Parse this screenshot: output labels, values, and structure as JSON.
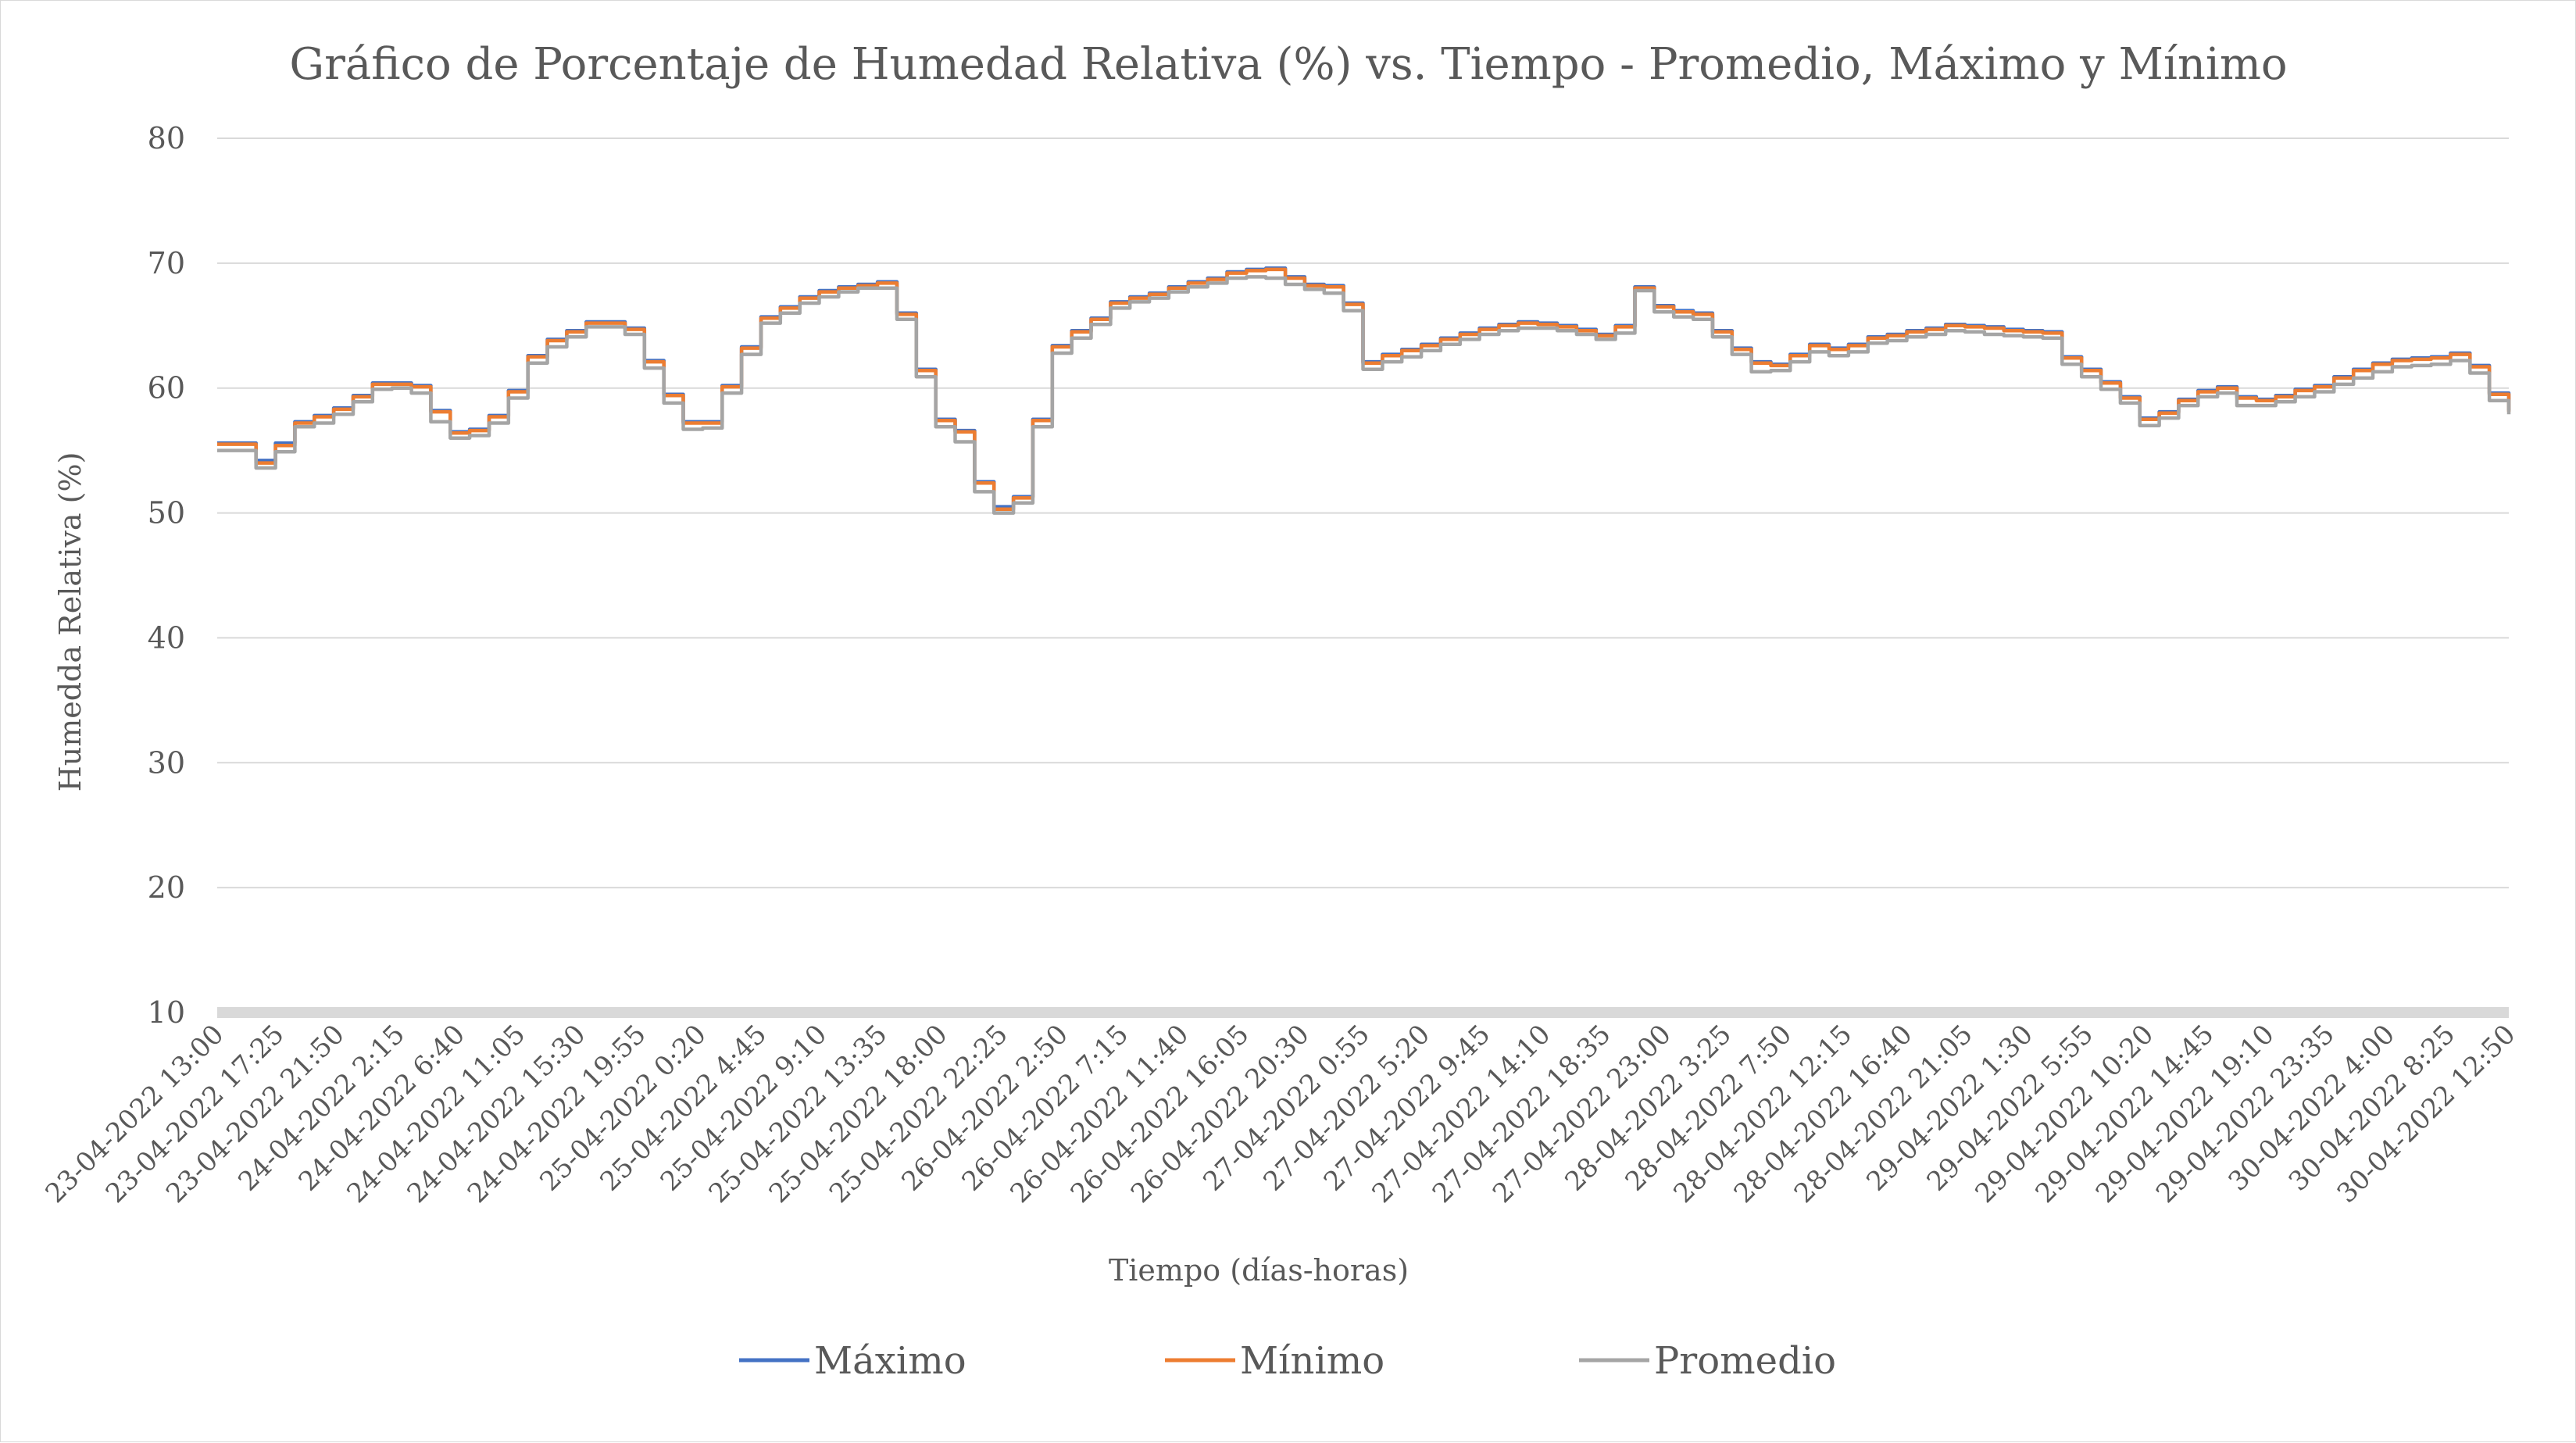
{
  "chart_data": {
    "type": "line",
    "title": "Gráfico de Porcentaje de Humedad Relativa (%) vs. Tiempo - Promedio, Máximo y Mínimo",
    "xlabel": "Tiempo (días-horas)",
    "ylabel": "Humedda Relativa (%)",
    "ylim": [
      10,
      80
    ],
    "yticks": [
      10,
      20,
      30,
      40,
      50,
      60,
      70,
      80
    ],
    "grid": true,
    "legend_position": "bottom",
    "x_tick_labels": [
      "23-04-2022 13:00",
      "23-04-2022 17:25",
      "23-04-2022 21:50",
      "24-04-2022 2:15",
      "24-04-2022 6:40",
      "24-04-2022 11:05",
      "24-04-2022 15:30",
      "24-04-2022 19:55",
      "25-04-2022 0:20",
      "25-04-2022 4:45",
      "25-04-2022 9:10",
      "25-04-2022 13:35",
      "25-04-2022 18:00",
      "25-04-2022 22:25",
      "26-04-2022 2:50",
      "26-04-2022 7:15",
      "26-04-2022 11:40",
      "26-04-2022 16:05",
      "26-04-2022 20:30",
      "27-04-2022 0:55",
      "27-04-2022 5:20",
      "27-04-2022 9:45",
      "27-04-2022 14:10",
      "27-04-2022 18:35",
      "27-04-2022 23:00",
      "28-04-2022 3:25",
      "28-04-2022 7:50",
      "28-04-2022 12:15",
      "28-04-2022 16:40",
      "28-04-2022 21:05",
      "29-04-2022 1:30",
      "29-04-2022 5:55",
      "29-04-2022 10:20",
      "29-04-2022 14:45",
      "29-04-2022 19:10",
      "29-04-2022 23:35",
      "30-04-2022 4:00",
      "30-04-2022 8:25",
      "30-04-2022 12:50"
    ],
    "series": [
      {
        "name": "Máximo",
        "color": "#4472C4",
        "values": [
          55.6,
          55.6,
          54.2,
          55.6,
          57.3,
          57.8,
          58.4,
          59.4,
          60.4,
          60.4,
          60.2,
          58.2,
          56.5,
          56.7,
          57.8,
          59.8,
          62.6,
          63.9,
          64.6,
          65.3,
          65.3,
          64.8,
          62.2,
          59.5,
          57.3,
          57.3,
          60.2,
          63.3,
          65.7,
          66.5,
          67.3,
          67.8,
          68.1,
          68.3,
          68.5,
          66.0,
          61.5,
          57.5,
          56.6,
          52.5,
          50.5,
          51.3,
          57.5,
          63.4,
          64.6,
          65.6,
          66.9,
          67.3,
          67.6,
          68.1,
          68.5,
          68.8,
          69.3,
          69.5,
          69.6,
          68.9,
          68.3,
          68.2,
          66.8,
          62.1,
          62.7,
          63.1,
          63.5,
          64.0,
          64.4,
          64.8,
          65.1,
          65.3,
          65.2,
          65.0,
          64.7,
          64.3,
          65.0,
          68.1,
          66.6,
          66.2,
          66.0,
          64.6,
          63.2,
          62.1,
          61.9,
          62.7,
          63.5,
          63.2,
          63.5,
          64.1,
          64.3,
          64.6,
          64.8,
          65.1,
          65.0,
          64.9,
          64.7,
          64.6,
          64.5,
          62.5,
          61.5,
          60.5,
          59.3,
          57.6,
          58.1,
          59.1,
          59.8,
          60.1,
          59.3,
          59.1,
          59.4,
          59.9,
          60.2,
          60.9,
          61.5,
          62.0,
          62.3,
          62.4,
          62.5,
          62.8,
          61.8,
          59.6,
          58.2
        ]
      },
      {
        "name": "Mínimo",
        "color": "#ED7D31",
        "values": [
          55.5,
          55.5,
          54.0,
          55.4,
          57.2,
          57.7,
          58.3,
          59.3,
          60.3,
          60.3,
          60.1,
          58.1,
          56.4,
          56.6,
          57.7,
          59.7,
          62.5,
          63.8,
          64.5,
          65.2,
          65.2,
          64.7,
          62.1,
          59.4,
          57.2,
          57.2,
          60.1,
          63.2,
          65.6,
          66.4,
          67.2,
          67.7,
          68.0,
          68.2,
          68.4,
          65.9,
          61.4,
          57.4,
          56.5,
          52.4,
          50.3,
          51.2,
          57.4,
          63.3,
          64.5,
          65.5,
          66.8,
          67.2,
          67.5,
          68.0,
          68.4,
          68.7,
          69.2,
          69.4,
          69.5,
          68.8,
          68.2,
          68.1,
          66.7,
          62.0,
          62.6,
          63.0,
          63.4,
          63.9,
          64.3,
          64.7,
          65.0,
          65.2,
          65.1,
          64.9,
          64.6,
          64.2,
          64.9,
          68.0,
          66.5,
          66.1,
          65.9,
          64.5,
          63.1,
          62.0,
          61.8,
          62.6,
          63.4,
          63.1,
          63.4,
          64.0,
          64.2,
          64.5,
          64.7,
          65.0,
          64.9,
          64.8,
          64.6,
          64.5,
          64.4,
          62.4,
          61.4,
          60.4,
          59.2,
          57.5,
          58.0,
          59.0,
          59.7,
          60.0,
          59.2,
          59.0,
          59.3,
          59.8,
          60.1,
          60.8,
          61.4,
          61.9,
          62.2,
          62.3,
          62.4,
          62.7,
          61.7,
          59.5,
          58.1
        ]
      },
      {
        "name": "Promedio",
        "color": "#A5A5A5",
        "values": [
          55.0,
          55.0,
          53.6,
          54.9,
          56.9,
          57.2,
          57.9,
          58.9,
          59.9,
          60.0,
          59.6,
          57.3,
          56.0,
          56.2,
          57.2,
          59.2,
          62.0,
          63.3,
          64.1,
          64.9,
          64.9,
          64.3,
          61.6,
          58.8,
          56.7,
          56.8,
          59.6,
          62.7,
          65.2,
          66.0,
          66.8,
          67.3,
          67.7,
          68.0,
          68.0,
          65.5,
          60.9,
          56.9,
          55.7,
          51.7,
          50.0,
          50.8,
          56.9,
          62.8,
          64.0,
          65.1,
          66.4,
          66.9,
          67.2,
          67.7,
          68.1,
          68.4,
          68.8,
          68.9,
          68.8,
          68.3,
          67.9,
          67.6,
          66.2,
          61.5,
          62.1,
          62.5,
          63.0,
          63.5,
          63.9,
          64.3,
          64.6,
          64.8,
          64.8,
          64.6,
          64.3,
          63.9,
          64.4,
          67.8,
          66.1,
          65.7,
          65.5,
          64.1,
          62.7,
          61.3,
          61.4,
          62.1,
          62.9,
          62.6,
          62.9,
          63.6,
          63.8,
          64.1,
          64.3,
          64.6,
          64.5,
          64.3,
          64.2,
          64.1,
          64.0,
          61.9,
          60.9,
          59.9,
          58.8,
          57.0,
          57.6,
          58.6,
          59.3,
          59.6,
          58.6,
          58.6,
          58.9,
          59.3,
          59.7,
          60.3,
          60.8,
          61.3,
          61.7,
          61.8,
          61.9,
          62.2,
          61.2,
          59.0,
          57.9
        ]
      }
    ]
  }
}
